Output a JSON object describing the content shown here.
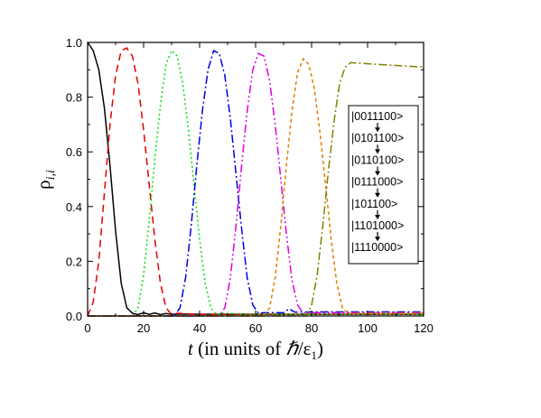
{
  "chart_data": {
    "type": "line",
    "title": "",
    "xlabel": {
      "italic": "t",
      "rest_before_hbar": " (in units of ",
      "hbar": "ℏ",
      "slash": "/ε",
      "sub": "1",
      "close": ")"
    },
    "ylabel": {
      "main": "ρ",
      "sub": "i,i"
    },
    "xlim": [
      0,
      120
    ],
    "ylim": [
      0,
      1.0
    ],
    "x_ticks": [
      "0",
      "20",
      "40",
      "60",
      "80",
      "100",
      "120"
    ],
    "y_ticks": [
      "0.0",
      "0.2",
      "0.4",
      "0.6",
      "0.8",
      "1.0"
    ],
    "grid": false,
    "legend_position": "right",
    "states": [
      "|0011100>",
      "|0101100>",
      "|0110100>",
      "|0111000>",
      "|101100>",
      "|1101000>",
      "|1110000>"
    ],
    "series": [
      {
        "color": "#000000",
        "dash": "",
        "x": [
          0,
          2,
          4,
          6,
          8,
          10,
          12,
          14,
          16,
          18,
          20,
          22,
          24,
          26,
          28,
          30,
          35,
          40,
          60,
          80,
          100,
          120
        ],
        "values": [
          1.0,
          0.97,
          0.9,
          0.76,
          0.55,
          0.31,
          0.12,
          0.03,
          0.01,
          0.005,
          0.012,
          0.006,
          0.011,
          0.005,
          0.009,
          0.006,
          0.007,
          0.006,
          0.006,
          0.006,
          0.006,
          0.006
        ]
      },
      {
        "color": "#e00000",
        "dash": "8,5",
        "x": [
          0,
          2,
          4,
          6,
          8,
          10,
          12,
          14,
          16,
          18,
          20,
          22,
          24,
          26,
          28,
          30,
          32,
          40,
          60,
          80,
          100,
          120
        ],
        "values": [
          0.0,
          0.05,
          0.2,
          0.45,
          0.7,
          0.88,
          0.97,
          0.98,
          0.95,
          0.85,
          0.68,
          0.48,
          0.28,
          0.12,
          0.03,
          0.005,
          0.01,
          0.006,
          0.006,
          0.006,
          0.006,
          0.006
        ]
      },
      {
        "color": "#00e000",
        "dash": "2,3",
        "x": [
          0,
          16,
          18,
          20,
          22,
          24,
          26,
          28,
          30,
          32,
          34,
          36,
          38,
          40,
          42,
          44,
          46,
          48,
          60,
          80,
          100,
          120
        ],
        "values": [
          0.0,
          0.0,
          0.03,
          0.15,
          0.35,
          0.57,
          0.77,
          0.92,
          0.97,
          0.95,
          0.85,
          0.68,
          0.48,
          0.28,
          0.12,
          0.03,
          0.005,
          0.01,
          0.006,
          0.006,
          0.006,
          0.006
        ]
      },
      {
        "color": "#0000e0",
        "dash": "9,3,2,3",
        "x": [
          0,
          31,
          33,
          35,
          37,
          39,
          41,
          43,
          45,
          47,
          49,
          51,
          53,
          55,
          57,
          59,
          61,
          63,
          70,
          72,
          74,
          80,
          100,
          120
        ],
        "values": [
          0.0,
          0.0,
          0.03,
          0.14,
          0.33,
          0.55,
          0.75,
          0.9,
          0.97,
          0.96,
          0.88,
          0.72,
          0.52,
          0.32,
          0.14,
          0.04,
          0.01,
          0.012,
          0.012,
          0.026,
          0.014,
          0.015,
          0.015,
          0.015
        ]
      },
      {
        "color": "#e000e0",
        "dash": "9,3,2,3,2,3",
        "x": [
          0,
          47,
          49,
          51,
          53,
          55,
          57,
          59,
          61,
          63,
          65,
          67,
          69,
          71,
          73,
          75,
          77,
          80,
          100,
          120
        ],
        "values": [
          0.0,
          0.0,
          0.03,
          0.14,
          0.33,
          0.55,
          0.75,
          0.9,
          0.96,
          0.95,
          0.86,
          0.7,
          0.5,
          0.3,
          0.13,
          0.04,
          0.01,
          0.012,
          0.012,
          0.012
        ]
      },
      {
        "color": "#e08000",
        "dash": "4,3",
        "x": [
          0,
          63,
          65,
          67,
          69,
          71,
          73,
          75,
          77,
          79,
          81,
          83,
          85,
          87,
          89,
          91,
          93,
          95,
          100,
          120
        ],
        "values": [
          0.0,
          0.0,
          0.03,
          0.14,
          0.33,
          0.55,
          0.75,
          0.89,
          0.94,
          0.92,
          0.83,
          0.67,
          0.48,
          0.28,
          0.12,
          0.03,
          0.008,
          0.01,
          0.01,
          0.01
        ]
      },
      {
        "color": "#808000",
        "dash": "9,3,2,3",
        "x": [
          0,
          78,
          80,
          82,
          84,
          86,
          88,
          90,
          92,
          94,
          96,
          100,
          110,
          120
        ],
        "values": [
          0.0,
          0.0,
          0.04,
          0.15,
          0.33,
          0.53,
          0.71,
          0.85,
          0.91,
          0.926,
          0.925,
          0.922,
          0.916,
          0.91
        ]
      }
    ]
  }
}
